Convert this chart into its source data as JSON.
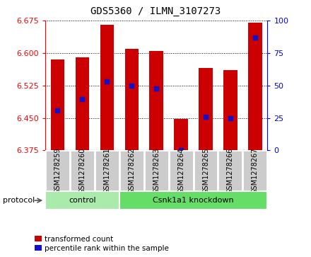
{
  "title": "GDS5360 / ILMN_3107273",
  "samples": [
    "GSM1278259",
    "GSM1278260",
    "GSM1278261",
    "GSM1278262",
    "GSM1278263",
    "GSM1278264",
    "GSM1278265",
    "GSM1278266",
    "GSM1278267"
  ],
  "bar_top": [
    6.585,
    6.59,
    6.665,
    6.61,
    6.605,
    6.447,
    6.565,
    6.56,
    6.67
  ],
  "bar_bottom": 6.375,
  "blue_marker": [
    6.468,
    6.493,
    6.535,
    6.525,
    6.518,
    6.376,
    6.453,
    6.45,
    6.635
  ],
  "ylim_left": [
    6.375,
    6.675
  ],
  "ylim_right": [
    0,
    100
  ],
  "yticks_left": [
    6.375,
    6.45,
    6.525,
    6.6,
    6.675
  ],
  "yticks_right": [
    0,
    25,
    50,
    75,
    100
  ],
  "bar_color": "#cc0000",
  "blue_color": "#1111cc",
  "control_n": 3,
  "knockdown_n": 6,
  "control_label": "control",
  "knockdown_label": "Csnk1a1 knockdown",
  "protocol_label": "protocol",
  "legend_red": "transformed count",
  "legend_blue": "percentile rank within the sample",
  "bar_width": 0.55,
  "group_bg_color": "#cccccc",
  "group_edge_color": "#ffffff",
  "protocol_bg_control": "#aaeaaa",
  "protocol_bg_knockdown": "#66dd66",
  "title_fontsize": 10,
  "axis_fontsize": 8,
  "sample_fontsize": 7,
  "protocol_fontsize": 8,
  "legend_fontsize": 7.5
}
